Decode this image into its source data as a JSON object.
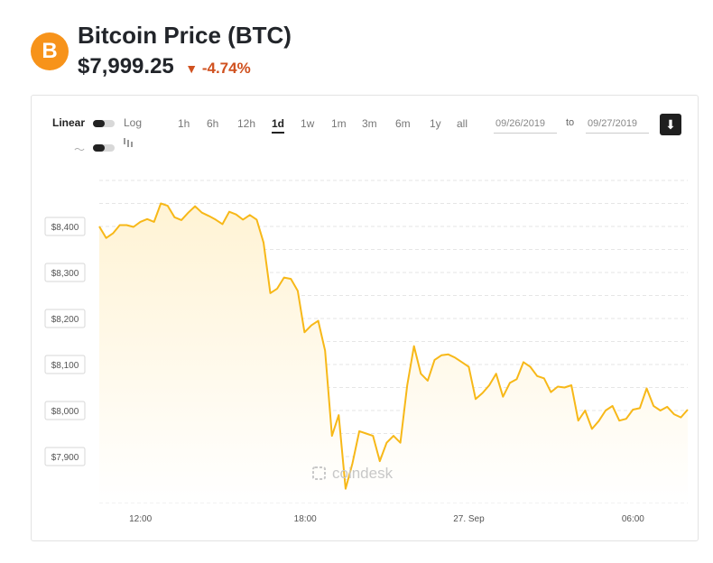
{
  "header": {
    "logo_glyph": "B",
    "title": "Bitcoin Price",
    "ticker": "(BTC)",
    "price": "$7,999.25",
    "change_arrow": "▼",
    "change": "-4.74%"
  },
  "controls": {
    "linear_label": "Linear",
    "log_label": "Log",
    "ranges": [
      "1h",
      "6h",
      "12h",
      "1d",
      "1w",
      "1m",
      "3m",
      "6m",
      "1y",
      "all"
    ],
    "active_range": "1d",
    "date_from": "09/26/2019",
    "to_label": "to",
    "date_to": "09/27/2019",
    "download_glyph": "⬇"
  },
  "watermark": "coindesk",
  "colors": {
    "line": "#f7b818",
    "fill_top": "#fff3d4",
    "brand": "#f7931a",
    "negative": "#d0511f"
  },
  "chart_data": {
    "type": "area",
    "x_ticks": [
      "12:00",
      "18:00",
      "27. Sep",
      "06:00"
    ],
    "y_ticks": [
      "$7,900",
      "$8,000",
      "$8,100",
      "$8,200",
      "$8,300",
      "$8,400"
    ],
    "ylim": [
      7800,
      8500
    ],
    "grid": true,
    "series": [
      {
        "values": [
          8400,
          8375,
          8385,
          8403,
          8403,
          8399,
          8410,
          8416,
          8410,
          8450,
          8445,
          8420,
          8414,
          8430,
          8444,
          8430,
          8423,
          8415,
          8405,
          8432,
          8426,
          8415,
          8425,
          8415,
          8365,
          8255,
          8265,
          8289,
          8286,
          8260,
          8170,
          8185,
          8195,
          8130,
          7945,
          7990,
          7830,
          7885,
          7955,
          7950,
          7945,
          7890,
          7930,
          7945,
          7930,
          8055,
          8140,
          8080,
          8065,
          8110,
          8120,
          8122,
          8115,
          8105,
          8095,
          8025,
          8038,
          8055,
          8080,
          8030,
          8060,
          8068,
          8105,
          8095,
          8075,
          8070,
          8040,
          8052,
          8050,
          8055,
          7978,
          8000,
          7960,
          7977,
          8000,
          8010,
          7978,
          7982,
          8002,
          8005,
          8048,
          8010,
          8000,
          8008,
          7992,
          7985,
          8002
        ]
      }
    ]
  }
}
